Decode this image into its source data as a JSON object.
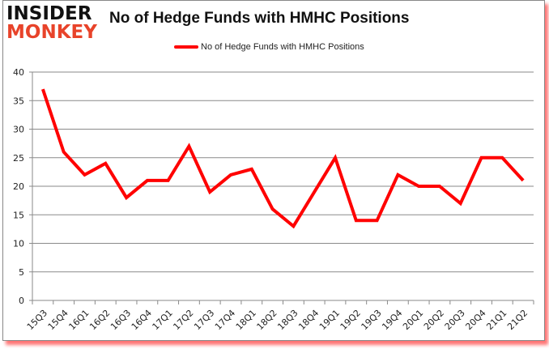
{
  "logo": {
    "line1": "INSIDER",
    "line2": "MONKEY"
  },
  "chart_data": {
    "type": "line",
    "title": "No of Hedge Funds with HMHC Positions",
    "xlabel": "",
    "ylabel": "",
    "ylim": [
      0,
      40
    ],
    "yticks": [
      0,
      5,
      10,
      15,
      20,
      25,
      30,
      35,
      40
    ],
    "grid": true,
    "legend_position": "top",
    "categories": [
      "15Q3",
      "15Q4",
      "16Q1",
      "16Q2",
      "16Q3",
      "16Q4",
      "17Q1",
      "17Q2",
      "17Q3",
      "17Q4",
      "18Q1",
      "18Q2",
      "18Q3",
      "18Q4",
      "19Q1",
      "19Q2",
      "19Q3",
      "19Q4",
      "20Q1",
      "20Q2",
      "20Q3",
      "20Q4",
      "21Q1",
      "21Q2"
    ],
    "series": [
      {
        "name": "No of Hedge Funds with HMHC Positions",
        "color": "#ff0000",
        "values": [
          37,
          26,
          22,
          24,
          18,
          21,
          21,
          27,
          19,
          22,
          23,
          16,
          13,
          19,
          25,
          14,
          14,
          22,
          20,
          20,
          17,
          25,
          25,
          21
        ]
      }
    ]
  }
}
